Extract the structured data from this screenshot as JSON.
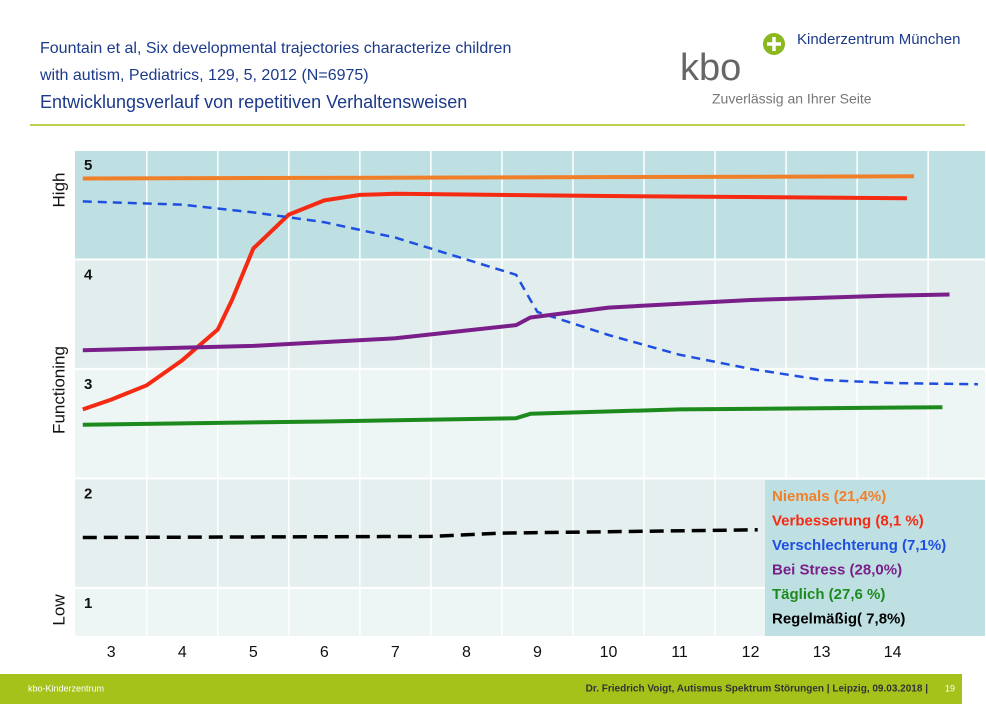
{
  "header": {
    "title_lines": [
      "Fountain et al, Six developmental trajectories characterize children",
      "with autism, Pediatrics, 129, 5, 2012                 (N=6975)",
      "Entwicklungsverlauf von repetitiven Verhaltensweisen"
    ],
    "logo": "kbo",
    "logo_org": "Kinderzentrum München",
    "logo_slogan": "Zuverlässig an Ihrer Seite"
  },
  "chart_data": {
    "type": "line",
    "y_labels": [
      "High",
      "Functioning",
      "Low"
    ],
    "xlim": [
      2.49,
      15.3
    ],
    "xticks": [
      3,
      4,
      5,
      6,
      7,
      8,
      9,
      10,
      11,
      12,
      13,
      14
    ],
    "ylim": [
      0.56,
      5
    ],
    "yticks": [
      1,
      2,
      3,
      4,
      5
    ],
    "band_colors": [
      "#eef5f5",
      "#e6efef",
      "#eef5f5",
      "#e2eeee",
      "#bfe0e3"
    ],
    "grid": true,
    "series": [
      {
        "name": "Niemals (21,4%)",
        "color": "#f07f2a",
        "dash": false,
        "x": [
          2.6,
          14.3
        ],
        "values": [
          4.74,
          4.76
        ]
      },
      {
        "name": "Verbesserung (8,1 %)",
        "color": "#f52a12",
        "dash": false,
        "x": [
          2.6,
          3,
          3.5,
          4,
          4.5,
          4.7,
          5,
          5.5,
          6,
          6.5,
          7,
          10,
          14.2
        ],
        "values": [
          2.63,
          2.72,
          2.85,
          3.08,
          3.36,
          3.63,
          4.1,
          4.41,
          4.54,
          4.59,
          4.6,
          4.58,
          4.56
        ]
      },
      {
        "name": "Verschlechterung (7,1%)",
        "color": "#1f4fe0",
        "dash": true,
        "x": [
          2.6,
          4,
          5,
          6,
          7,
          8,
          8.7,
          8.9,
          9,
          10,
          11,
          12,
          13,
          14,
          15.2
        ],
        "values": [
          4.53,
          4.5,
          4.43,
          4.34,
          4.2,
          4.0,
          3.86,
          3.63,
          3.52,
          3.31,
          3.13,
          3.0,
          2.9,
          2.87,
          2.86
        ]
      },
      {
        "name": "Bei Stress (28,0%)",
        "color": "#7a1e8a",
        "dash": false,
        "x": [
          2.6,
          5,
          7,
          8.7,
          8.9,
          10,
          12,
          14,
          14.8
        ],
        "values": [
          3.17,
          3.21,
          3.28,
          3.4,
          3.47,
          3.56,
          3.63,
          3.67,
          3.68
        ]
      },
      {
        "name": "Täglich (27,6 %)",
        "color": "#1c8a1c",
        "dash": false,
        "x": [
          2.6,
          6,
          8.7,
          8.9,
          11,
          14.7
        ],
        "values": [
          2.49,
          2.52,
          2.55,
          2.59,
          2.63,
          2.65
        ]
      },
      {
        "name": "Regelmäßig( 7,8%)",
        "color": "#000000",
        "dash": true,
        "x": [
          2.6,
          7.5,
          8.5,
          12.1
        ],
        "values": [
          1.46,
          1.47,
          1.5,
          1.53
        ]
      }
    ]
  },
  "footer": {
    "left": "kbo-Kinderzentrum",
    "right": "Dr. Friedrich Voigt, Autismus Spektrum Störungen | Leipzig, 09.03.2018 |",
    "page": "19"
  }
}
